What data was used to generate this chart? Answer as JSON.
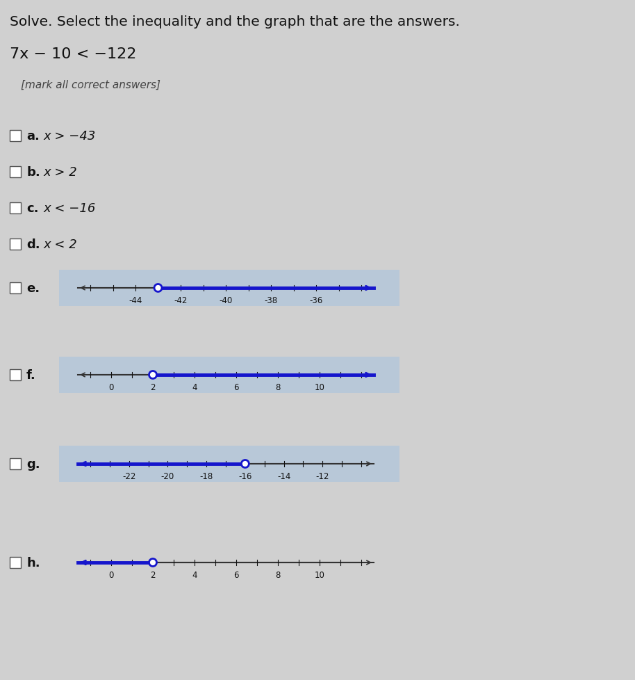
{
  "title": "Solve. Select the inequality and the graph that are the answers.",
  "problem": "7x − 10 < −122",
  "subtitle": "[mark all correct answers]",
  "bg_color": "#d0d0d0",
  "highlight_color": "#b8c8d8",
  "options_text": [
    {
      "label": "a.",
      "text": "x > −43"
    },
    {
      "label": "b.",
      "text": "x > 2"
    },
    {
      "label": "c.",
      "text": "x < −16"
    },
    {
      "label": "d.",
      "text": "x < 2"
    }
  ],
  "options_graph": [
    {
      "label": "e.",
      "open_circle": -43,
      "arrow_dir": "right",
      "labeled_ticks": [
        -44,
        -42,
        -40,
        -38,
        -36
      ],
      "xmin": -46,
      "xmax": -34,
      "highlight_bg": true
    },
    {
      "label": "f.",
      "open_circle": 2,
      "arrow_dir": "right",
      "labeled_ticks": [
        0,
        2,
        4,
        6,
        8,
        10
      ],
      "xmin": -1,
      "xmax": 12,
      "highlight_bg": true
    },
    {
      "label": "g.",
      "open_circle": -16,
      "arrow_dir": "left",
      "labeled_ticks": [
        -22,
        -20,
        -18,
        -16,
        -14,
        -12
      ],
      "xmin": -24,
      "xmax": -10,
      "highlight_bg": true
    },
    {
      "label": "h.",
      "open_circle": 2,
      "arrow_dir": "left",
      "labeled_ticks": [
        0,
        2,
        4,
        6,
        8,
        10
      ],
      "xmin": -1,
      "xmax": 12,
      "highlight_bg": false
    }
  ],
  "line_color": "#1515cc",
  "text_color": "#111111",
  "title_fontsize": 14.5,
  "problem_fontsize": 16,
  "subtitle_fontsize": 11,
  "option_label_fontsize": 13,
  "option_text_fontsize": 13,
  "tick_label_fontsize": 8.5,
  "graph_label_fontsize": 13
}
